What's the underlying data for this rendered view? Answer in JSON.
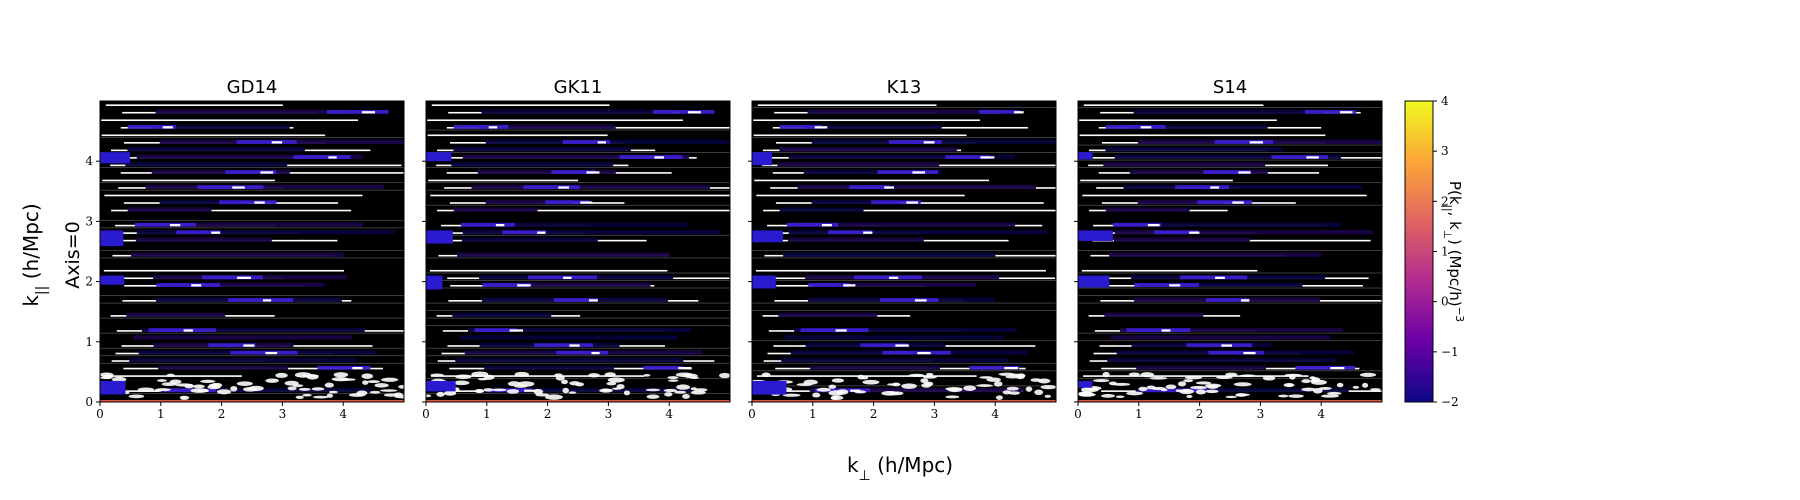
{
  "chart_data": {
    "type": "heatmap",
    "panels": [
      {
        "title": "GD14",
        "seed": 11
      },
      {
        "title": "GK11",
        "seed": 23
      },
      {
        "title": "K13",
        "seed": 37
      },
      {
        "title": "S14",
        "seed": 51
      }
    ],
    "xlabel": "k⊥ (h/Mpc)",
    "ylabel": "k|| (h/Mpc)",
    "row_label": "Axis=0",
    "xlim": [
      0,
      5
    ],
    "ylim": [
      0,
      5
    ],
    "xticks": [
      0,
      1,
      2,
      3,
      4
    ],
    "yticks": [
      0,
      1,
      2,
      3,
      4
    ],
    "colorbar": {
      "label": "P(k||, k⊥) (Mpc/h)−3",
      "range": [
        -2,
        4
      ],
      "ticks": [
        -2,
        -1,
        0,
        1,
        2,
        3,
        4
      ],
      "tick_labels": [
        "−2",
        "−1",
        "0",
        "1",
        "2",
        "3",
        "4"
      ],
      "colormap": "plasma",
      "colors": [
        "#0d0887",
        "#6a00a8",
        "#b12a90",
        "#e16462",
        "#fca636",
        "#f0f921"
      ]
    }
  }
}
